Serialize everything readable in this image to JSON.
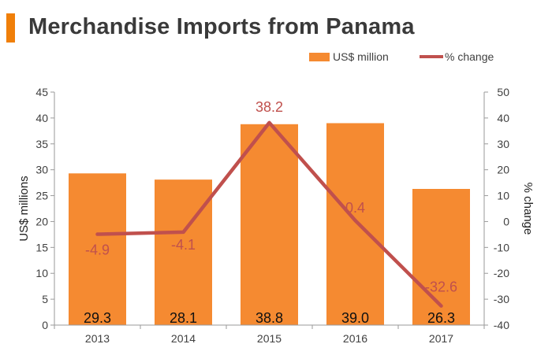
{
  "page": {
    "title": "Merchandise Imports from Panama",
    "accent_color": "#f07f09"
  },
  "legend": {
    "bar_label": "US$ million",
    "line_label": "% change"
  },
  "chart_data": {
    "type": "bar",
    "title": "Merchandise Imports from Panama",
    "categories": [
      "2013",
      "2014",
      "2015",
      "2016",
      "2017"
    ],
    "series": [
      {
        "name": "US$ million",
        "type": "bar",
        "axis": "left",
        "color": "#f58a31",
        "values": [
          29.3,
          28.1,
          38.8,
          39.0,
          26.3
        ],
        "data_labels": [
          "29.3",
          "28.1",
          "38.8",
          "39.0",
          "26.3"
        ]
      },
      {
        "name": "% change",
        "type": "line",
        "axis": "right",
        "color": "#c0504d",
        "values": [
          -4.9,
          -4.1,
          38.2,
          0.4,
          -32.6
        ],
        "data_labels": [
          "-4.9",
          "-4.1",
          "38.2",
          "0.4",
          "-32.6"
        ]
      }
    ],
    "ylabel": "US$ millions",
    "y2label": "% change",
    "ylim": [
      0,
      45
    ],
    "y2lim": [
      -40,
      50
    ],
    "yticks": [
      "0",
      "5",
      "10",
      "15",
      "20",
      "25",
      "30",
      "35",
      "40",
      "45"
    ],
    "y2ticks": [
      "-40",
      "-30",
      "-20",
      "-10",
      "0",
      "10",
      "20",
      "30",
      "40",
      "50"
    ],
    "grid": false,
    "legend_position": "top-right"
  }
}
